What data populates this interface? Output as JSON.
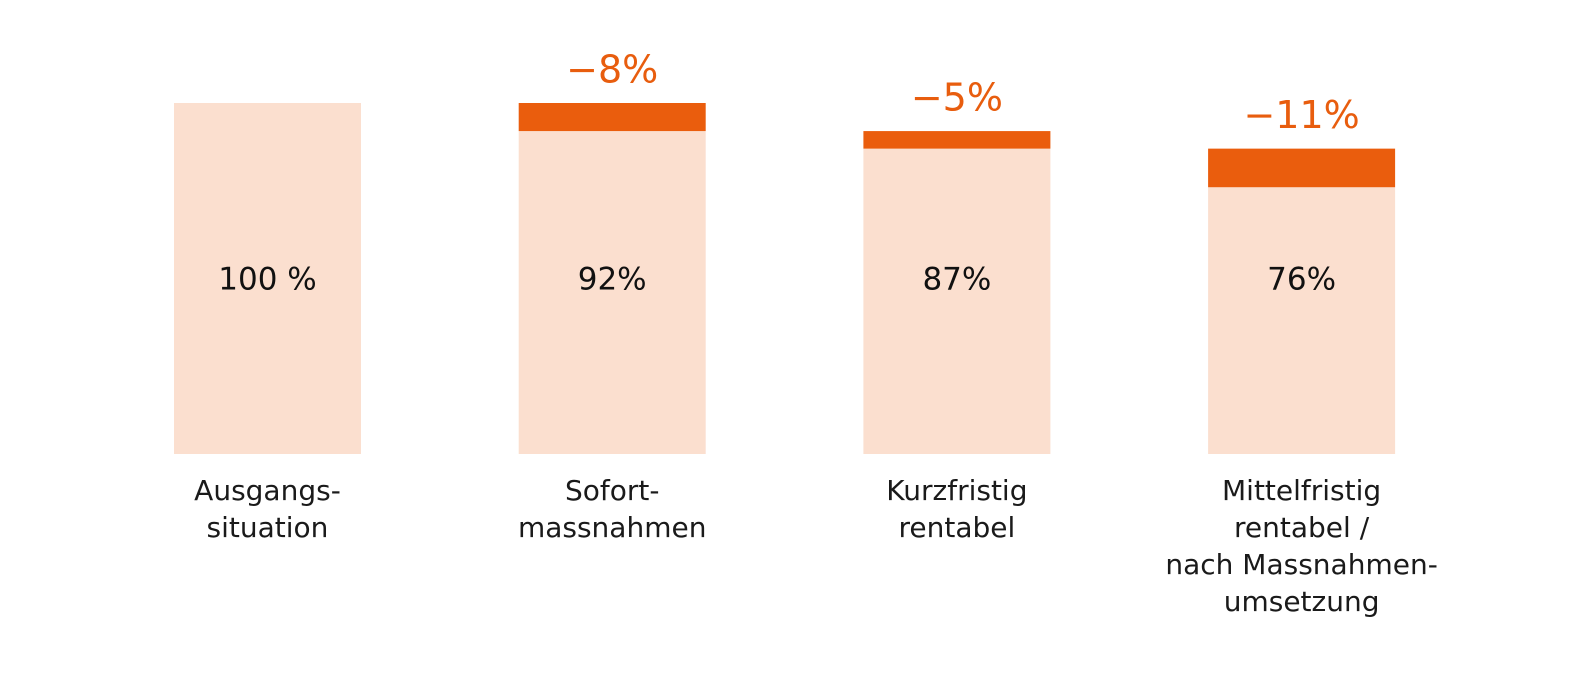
{
  "chart_data": {
    "type": "bar",
    "categories": [
      [
        "Ausgangs-",
        "situation"
      ],
      [
        "Sofort-",
        "massnahmen"
      ],
      [
        "Kurzfristig",
        "rentabel"
      ],
      [
        "Mittelfristig",
        "rentabel /",
        "nach Massnahmen-",
        "umsetzung"
      ]
    ],
    "series": [
      {
        "color": "#fbdfcf",
        "values": [
          100,
          92,
          87,
          76
        ],
        "value_labels": [
          "100 %",
          "92%",
          "87%",
          "76%"
        ]
      },
      {
        "color": "#ea5d0d",
        "values": [
          null,
          -8,
          -5,
          -11
        ],
        "value_labels": [
          null,
          "−8%",
          "−5%",
          "−11%"
        ]
      }
    ]
  }
}
